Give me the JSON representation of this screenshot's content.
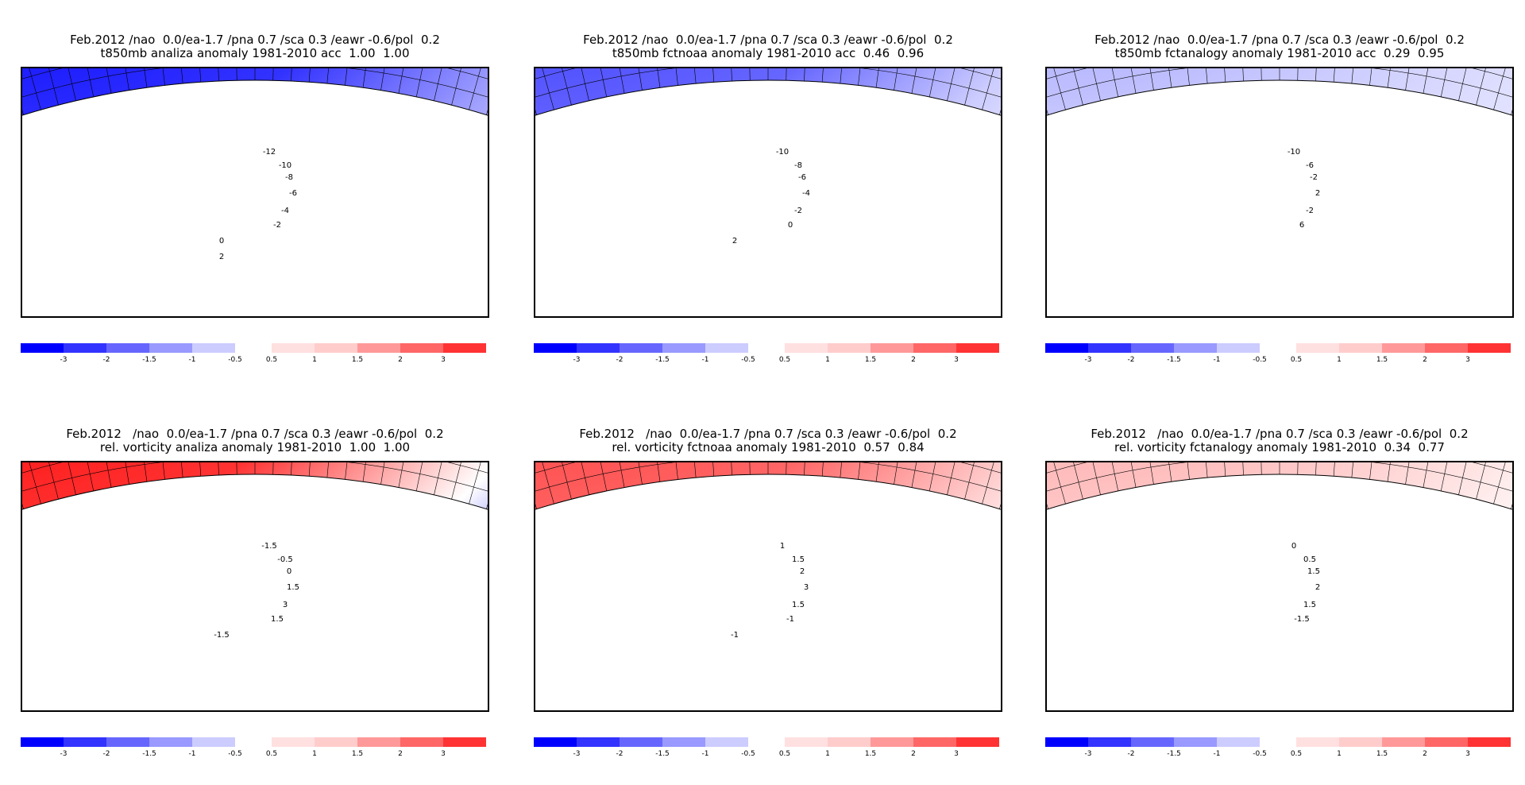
{
  "colors": {
    "blue_scale": [
      "#0000ff",
      "#3333ff",
      "#6666ff",
      "#9999ff",
      "#ccccff",
      "#e6e6ff"
    ],
    "red_scale": [
      "#ffe0e0",
      "#ffcccc",
      "#ff9999",
      "#ff6666",
      "#ff3333",
      "#ff0000"
    ],
    "coast": "#20b2aa",
    "contour": "#000000"
  },
  "colorbar": {
    "neg_ticks": [
      "-3",
      "-2",
      "-1.5",
      "-1",
      "-0.5"
    ],
    "pos_ticks": [
      "0.5",
      "1",
      "1.5",
      "2",
      "3"
    ]
  },
  "panels": [
    {
      "line1": "Feb.2012 /nao  0.0/ea-1.7 /pna 0.7 /sca 0.3 /eawr -0.6/pol  0.2",
      "line2": "t850mb analiza anomaly 1981-2010 acc  1.00  1.00",
      "contour_labels": [
        "-12",
        "-10",
        "-8",
        "-6",
        "-4",
        "-2",
        "0",
        "2"
      ],
      "fill": "cold"
    },
    {
      "line1": "Feb.2012 /nao  0.0/ea-1.7 /pna 0.7 /sca 0.3 /eawr -0.6/pol  0.2",
      "line2": "t850mb fctnoaa anomaly 1981-2010 acc  0.46  0.96",
      "contour_labels": [
        "-10",
        "-8",
        "-6",
        "-4",
        "-2",
        "0",
        "2"
      ],
      "fill": "cold-mid"
    },
    {
      "line1": "Feb.2012 /nao  0.0/ea-1.7 /pna 0.7 /sca 0.3 /eawr -0.6/pol  0.2",
      "line2": "t850mb fctanalogy anomaly 1981-2010 acc  0.29  0.95",
      "contour_labels": [
        "-10",
        "-6",
        "-2",
        "2",
        "-2",
        "6"
      ],
      "fill": "cold-light"
    },
    {
      "line1": "Feb.2012   /nao  0.0/ea-1.7 /pna 0.7 /sca 0.3 /eawr -0.6/pol  0.2",
      "line2": "rel. vorticity analiza anomaly 1981-2010  1.00  1.00",
      "contour_labels": [
        "-1.5",
        "-0.5",
        "0",
        "1.5",
        "3",
        "1.5",
        "-1.5"
      ],
      "fill": "vort-strong"
    },
    {
      "line1": "Feb.2012   /nao  0.0/ea-1.7 /pna 0.7 /sca 0.3 /eawr -0.6/pol  0.2",
      "line2": "rel. vorticity fctnoaa anomaly 1981-2010  0.57  0.84",
      "contour_labels": [
        "1",
        "1.5",
        "2",
        "3",
        "1.5",
        "-1",
        "-1"
      ],
      "fill": "vort-mid"
    },
    {
      "line1": "Feb.2012   /nao  0.0/ea-1.7 /pna 0.7 /sca 0.3 /eawr -0.6/pol  0.2",
      "line2": "rel. vorticity fctanalogy anomaly 1981-2010  0.34  0.77",
      "contour_labels": [
        "0",
        "0.5",
        "1.5",
        "2",
        "1.5",
        "-1.5"
      ],
      "fill": "vort-light"
    }
  ]
}
